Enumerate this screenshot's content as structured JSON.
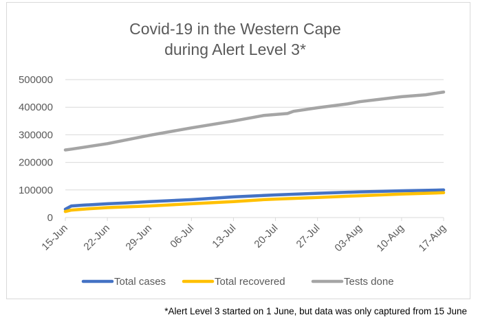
{
  "chart_data": {
    "type": "line",
    "title_lines": [
      "Covid-19 in the Western Cape",
      "during Alert Level 3*"
    ],
    "xlabel": "",
    "ylabel": "",
    "ylim": [
      0,
      500000
    ],
    "y_ticks": [
      "0",
      "100000",
      "200000",
      "300000",
      "400000",
      "500000"
    ],
    "x_ticks": [
      "15-Jun",
      "22-Jun",
      "29-Jun",
      "06-Jul",
      "13-Jul",
      "20-Jul",
      "27-Jul",
      "03-Aug",
      "10-Aug",
      "17-Aug"
    ],
    "grid": true,
    "legend_position": "bottom",
    "x_start": "2020-06-15",
    "x_end": "2020-08-17",
    "series": [
      {
        "name": "Total cases",
        "color": "#4472c4",
        "points": [
          [
            "2020-06-15",
            30000
          ],
          [
            "2020-06-16",
            42000
          ],
          [
            "2020-06-18",
            45000
          ],
          [
            "2020-06-22",
            50000
          ],
          [
            "2020-06-25",
            53000
          ],
          [
            "2020-06-29",
            58000
          ],
          [
            "2020-07-06",
            65000
          ],
          [
            "2020-07-13",
            75000
          ],
          [
            "2020-07-20",
            82000
          ],
          [
            "2020-07-27",
            88000
          ],
          [
            "2020-08-03",
            93000
          ],
          [
            "2020-08-10",
            97000
          ],
          [
            "2020-08-17",
            100000
          ]
        ]
      },
      {
        "name": "Total recovered",
        "color": "#ffc000",
        "points": [
          [
            "2020-06-15",
            22000
          ],
          [
            "2020-06-16",
            27000
          ],
          [
            "2020-06-19",
            32000
          ],
          [
            "2020-06-22",
            36000
          ],
          [
            "2020-06-29",
            42000
          ],
          [
            "2020-07-06",
            50000
          ],
          [
            "2020-07-13",
            58000
          ],
          [
            "2020-07-18",
            65000
          ],
          [
            "2020-07-20",
            67000
          ],
          [
            "2020-07-27",
            73000
          ],
          [
            "2020-08-03",
            79000
          ],
          [
            "2020-08-10",
            85000
          ],
          [
            "2020-08-17",
            90000
          ]
        ]
      },
      {
        "name": "Tests done",
        "color": "#a5a5a5",
        "points": [
          [
            "2020-06-15",
            245000
          ],
          [
            "2020-06-16",
            248000
          ],
          [
            "2020-06-22",
            268000
          ],
          [
            "2020-06-29",
            298000
          ],
          [
            "2020-07-06",
            325000
          ],
          [
            "2020-07-13",
            350000
          ],
          [
            "2020-07-18",
            370000
          ],
          [
            "2020-07-22",
            377000
          ],
          [
            "2020-07-23",
            385000
          ],
          [
            "2020-07-27",
            398000
          ],
          [
            "2020-08-01",
            412000
          ],
          [
            "2020-08-03",
            420000
          ],
          [
            "2020-08-10",
            438000
          ],
          [
            "2020-08-14",
            445000
          ],
          [
            "2020-08-17",
            455000
          ]
        ]
      }
    ]
  },
  "footnote": "*Alert Level 3 started on 1 June, but data was only captured from 15 June"
}
